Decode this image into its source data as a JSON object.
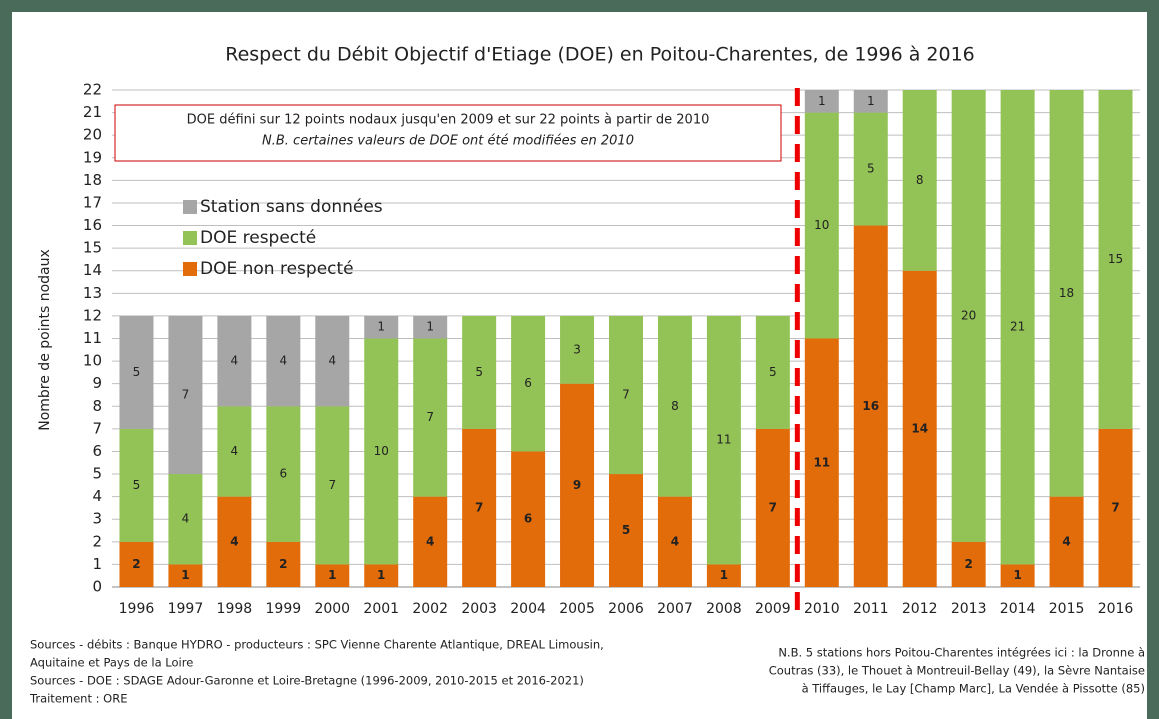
{
  "chart_data": {
    "type": "stacked_bar",
    "title": "Respect du Débit Objectif d'Etiage (DOE) en Poitou-Charentes, de 1996 à 2016",
    "y_label": "Nombre de points nodaux",
    "categories": [
      "1996",
      "1997",
      "1998",
      "1999",
      "2000",
      "2001",
      "2002",
      "2003",
      "2004",
      "2005",
      "2006",
      "2007",
      "2008",
      "2009",
      "2010",
      "2011",
      "2012",
      "2013",
      "2014",
      "2015",
      "2016"
    ],
    "series": [
      {
        "name": "DOE non respecté",
        "color": "#e36c0a",
        "values": [
          2,
          1,
          4,
          2,
          1,
          1,
          4,
          7,
          6,
          9,
          5,
          4,
          1,
          7,
          11,
          16,
          14,
          2,
          1,
          4,
          7
        ]
      },
      {
        "name": "DOE respecté",
        "color": "#93c356",
        "values": [
          5,
          4,
          4,
          6,
          7,
          10,
          7,
          5,
          6,
          3,
          7,
          8,
          11,
          5,
          10,
          5,
          8,
          20,
          21,
          18,
          15
        ]
      },
      {
        "name": "Station sans données",
        "color": "#a6a6a6",
        "values": [
          5,
          7,
          4,
          4,
          4,
          1,
          1,
          null,
          null,
          null,
          null,
          null,
          null,
          null,
          1,
          1,
          null,
          null,
          null,
          null,
          null
        ]
      }
    ],
    "ylim": [
      0,
      22
    ],
    "yticks": [
      0,
      1,
      2,
      3,
      4,
      5,
      6,
      7,
      8,
      9,
      10,
      11,
      12,
      13,
      14,
      15,
      16,
      17,
      18,
      19,
      20,
      21,
      22
    ],
    "grid": true,
    "annotation_box": [
      "DOE défini sur 12 points nodaux jusqu'en 2009 et sur 22 points à partir de 2010",
      "N.B. certaines valeurs de DOE ont été modifiées en 2010"
    ],
    "sources": [
      "Sources - débits : Banque HYDRO - producteurs : SPC Vienne Charente Atlantique, DREAL Limousin,",
      "Aquitaine et Pays de la Loire",
      "Sources - DOE : SDAGE Adour-Garonne et Loire-Bretagne (1996-2009, 2010-2015 et 2016-2021)",
      "Traitement : ORE"
    ],
    "note": [
      "N.B. 5 stations hors Poitou-Charentes intégrées ici : la Dronne à",
      "Coutras (33), le Thouet à Montreuil-Bellay (49), la Sèvre Nantaise",
      "à Tiffauges, le Lay [Champ Marc], La Vendée à Pissotte (85)"
    ]
  }
}
